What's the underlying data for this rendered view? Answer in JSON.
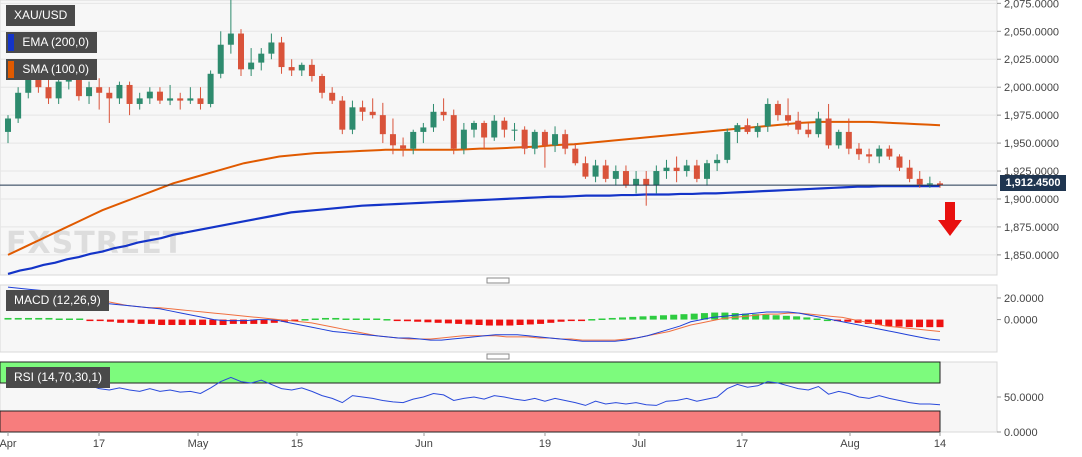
{
  "chart_data": [
    {
      "type": "candlestick",
      "panel": "price",
      "symbol": "XAU/USD",
      "last_price": "1,912.4500",
      "y_axis_ticks": [
        "2,075.0000",
        "2,050.0000",
        "2,025.0000",
        "2,000.0000",
        "1,975.0000",
        "1,950.0000",
        "1,925.0000",
        "1,900.0000",
        "1,875.0000",
        "1,850.0000"
      ],
      "ylim": [
        1832,
        2078
      ],
      "x_axis_ticks": [
        "Apr",
        "17",
        "May",
        "15",
        "Jun",
        "19",
        "Jul",
        "17",
        "Aug",
        "14"
      ],
      "indicators": [
        {
          "name": "EMA (200,0)",
          "color": "#1434c8",
          "values": [
            1833,
            1836,
            1838,
            1841,
            1843,
            1846,
            1848,
            1851,
            1853,
            1856,
            1858,
            1861,
            1863,
            1865,
            1868,
            1870,
            1872,
            1874,
            1876,
            1878,
            1880,
            1882,
            1884,
            1886,
            1888,
            1889,
            1890,
            1891,
            1892,
            1893,
            1894,
            1894.5,
            1895,
            1895.5,
            1896,
            1896.5,
            1897,
            1897.5,
            1898,
            1898.5,
            1899,
            1899.5,
            1900,
            1900.5,
            1901,
            1901.5,
            1902,
            1902,
            1902.5,
            1903,
            1903,
            1903,
            1903.5,
            1903.5,
            1904,
            1904,
            1904,
            1904.5,
            1904.5,
            1905,
            1905,
            1905.5,
            1906,
            1906.5,
            1907,
            1907.5,
            1908,
            1908.5,
            1909,
            1909.5,
            1910,
            1910.5,
            1911,
            1911,
            1911.5,
            1911.5,
            1911.5,
            1911.5,
            1911.5,
            1911.5
          ]
        },
        {
          "name": "SMA (100,0)",
          "color": "#e05a00",
          "values": [
            1850,
            1855,
            1860,
            1865,
            1870,
            1875,
            1880,
            1885,
            1890,
            1894,
            1898,
            1902,
            1906,
            1910,
            1914,
            1917,
            1920,
            1923,
            1926,
            1929,
            1932,
            1934,
            1936,
            1938,
            1939,
            1940,
            1941,
            1941.5,
            1942,
            1942.5,
            1943,
            1943.5,
            1944,
            1944,
            1944,
            1944,
            1944,
            1944,
            1944,
            1944.5,
            1945,
            1945,
            1945.5,
            1946,
            1946.5,
            1947,
            1948,
            1948.5,
            1949,
            1950,
            1951,
            1952,
            1953,
            1954,
            1955,
            1956,
            1957,
            1958,
            1959,
            1960,
            1961,
            1962,
            1963,
            1964,
            1965,
            1966,
            1967,
            1968,
            1968.5,
            1969,
            1969,
            1969,
            1969,
            1969,
            1968.5,
            1968,
            1967.5,
            1967,
            1966.5,
            1966
          ]
        }
      ],
      "candles": [
        {
          "o": 1960,
          "h": 1975,
          "l": 1950,
          "c": 1972
        },
        {
          "o": 1972,
          "h": 2000,
          "l": 1968,
          "c": 1995
        },
        {
          "o": 1995,
          "h": 2015,
          "l": 1990,
          "c": 2010
        },
        {
          "o": 2010,
          "h": 2020,
          "l": 1995,
          "c": 2000
        },
        {
          "o": 2000,
          "h": 2010,
          "l": 1985,
          "c": 1990
        },
        {
          "o": 1990,
          "h": 2008,
          "l": 1985,
          "c": 2005
        },
        {
          "o": 2005,
          "h": 2015,
          "l": 1998,
          "c": 2008
        },
        {
          "o": 2008,
          "h": 2012,
          "l": 1988,
          "c": 1992
        },
        {
          "o": 1992,
          "h": 2005,
          "l": 1985,
          "c": 2000
        },
        {
          "o": 2000,
          "h": 2008,
          "l": 1980,
          "c": 1995
        },
        {
          "o": 1995,
          "h": 2000,
          "l": 1968,
          "c": 1990
        },
        {
          "o": 1990,
          "h": 2005,
          "l": 1985,
          "c": 2002
        },
        {
          "o": 2002,
          "h": 2005,
          "l": 1975,
          "c": 1985
        },
        {
          "o": 1985,
          "h": 1995,
          "l": 1980,
          "c": 1990
        },
        {
          "o": 1990,
          "h": 2000,
          "l": 1985,
          "c": 1996
        },
        {
          "o": 1996,
          "h": 2000,
          "l": 1985,
          "c": 1988
        },
        {
          "o": 1988,
          "h": 2002,
          "l": 1984,
          "c": 1990
        },
        {
          "o": 1990,
          "h": 1995,
          "l": 1980,
          "c": 1988
        },
        {
          "o": 1988,
          "h": 2000,
          "l": 1985,
          "c": 1990
        },
        {
          "o": 1990,
          "h": 2000,
          "l": 1980,
          "c": 1985
        },
        {
          "o": 1985,
          "h": 2015,
          "l": 1982,
          "c": 2012
        },
        {
          "o": 2012,
          "h": 2050,
          "l": 2008,
          "c": 2038
        },
        {
          "o": 2038,
          "h": 2078,
          "l": 2030,
          "c": 2048
        },
        {
          "o": 2048,
          "h": 2052,
          "l": 2010,
          "c": 2016
        },
        {
          "o": 2016,
          "h": 2035,
          "l": 2010,
          "c": 2022
        },
        {
          "o": 2022,
          "h": 2035,
          "l": 2015,
          "c": 2030
        },
        {
          "o": 2030,
          "h": 2048,
          "l": 2025,
          "c": 2040
        },
        {
          "o": 2040,
          "h": 2045,
          "l": 2012,
          "c": 2018
        },
        {
          "o": 2018,
          "h": 2025,
          "l": 2010,
          "c": 2015
        },
        {
          "o": 2015,
          "h": 2022,
          "l": 2010,
          "c": 2020
        },
        {
          "o": 2020,
          "h": 2025,
          "l": 2005,
          "c": 2010
        },
        {
          "o": 2010,
          "h": 2012,
          "l": 1990,
          "c": 1995
        },
        {
          "o": 1995,
          "h": 2000,
          "l": 1985,
          "c": 1988
        },
        {
          "o": 1988,
          "h": 1992,
          "l": 1958,
          "c": 1962
        },
        {
          "o": 1962,
          "h": 1988,
          "l": 1958,
          "c": 1982
        },
        {
          "o": 1982,
          "h": 1988,
          "l": 1970,
          "c": 1978
        },
        {
          "o": 1978,
          "h": 1990,
          "l": 1972,
          "c": 1975
        },
        {
          "o": 1975,
          "h": 1986,
          "l": 1950,
          "c": 1958
        },
        {
          "o": 1958,
          "h": 1972,
          "l": 1940,
          "c": 1948
        },
        {
          "o": 1948,
          "h": 1955,
          "l": 1938,
          "c": 1945
        },
        {
          "o": 1945,
          "h": 1962,
          "l": 1940,
          "c": 1960
        },
        {
          "o": 1960,
          "h": 1968,
          "l": 1950,
          "c": 1964
        },
        {
          "o": 1964,
          "h": 1985,
          "l": 1960,
          "c": 1978
        },
        {
          "o": 1978,
          "h": 1990,
          "l": 1970,
          "c": 1975
        },
        {
          "o": 1975,
          "h": 1980,
          "l": 1940,
          "c": 1945
        },
        {
          "o": 1945,
          "h": 1968,
          "l": 1940,
          "c": 1962
        },
        {
          "o": 1962,
          "h": 1970,
          "l": 1955,
          "c": 1968
        },
        {
          "o": 1968,
          "h": 1970,
          "l": 1945,
          "c": 1955
        },
        {
          "o": 1955,
          "h": 1975,
          "l": 1952,
          "c": 1970
        },
        {
          "o": 1970,
          "h": 1973,
          "l": 1955,
          "c": 1962
        },
        {
          "o": 1962,
          "h": 1968,
          "l": 1952,
          "c": 1962
        },
        {
          "o": 1962,
          "h": 1965,
          "l": 1940,
          "c": 1945
        },
        {
          "o": 1945,
          "h": 1962,
          "l": 1940,
          "c": 1960
        },
        {
          "o": 1960,
          "h": 1962,
          "l": 1928,
          "c": 1948
        },
        {
          "o": 1948,
          "h": 1965,
          "l": 1942,
          "c": 1958
        },
        {
          "o": 1958,
          "h": 1962,
          "l": 1940,
          "c": 1945
        },
        {
          "o": 1945,
          "h": 1950,
          "l": 1930,
          "c": 1932
        },
        {
          "o": 1932,
          "h": 1938,
          "l": 1918,
          "c": 1920
        },
        {
          "o": 1920,
          "h": 1935,
          "l": 1915,
          "c": 1930
        },
        {
          "o": 1930,
          "h": 1935,
          "l": 1915,
          "c": 1918
        },
        {
          "o": 1918,
          "h": 1930,
          "l": 1912,
          "c": 1925
        },
        {
          "o": 1925,
          "h": 1930,
          "l": 1910,
          "c": 1912
        },
        {
          "o": 1912,
          "h": 1925,
          "l": 1905,
          "c": 1918
        },
        {
          "o": 1918,
          "h": 1925,
          "l": 1894,
          "c": 1912
        },
        {
          "o": 1912,
          "h": 1930,
          "l": 1905,
          "c": 1925
        },
        {
          "o": 1925,
          "h": 1935,
          "l": 1918,
          "c": 1928
        },
        {
          "o": 1928,
          "h": 1938,
          "l": 1915,
          "c": 1925
        },
        {
          "o": 1925,
          "h": 1935,
          "l": 1920,
          "c": 1930
        },
        {
          "o": 1930,
          "h": 1935,
          "l": 1915,
          "c": 1918
        },
        {
          "o": 1918,
          "h": 1935,
          "l": 1912,
          "c": 1932
        },
        {
          "o": 1932,
          "h": 1940,
          "l": 1925,
          "c": 1935
        },
        {
          "o": 1935,
          "h": 1963,
          "l": 1932,
          "c": 1960
        },
        {
          "o": 1960,
          "h": 1968,
          "l": 1950,
          "c": 1966
        },
        {
          "o": 1966,
          "h": 1972,
          "l": 1958,
          "c": 1960
        },
        {
          "o": 1960,
          "h": 1968,
          "l": 1955,
          "c": 1965
        },
        {
          "o": 1965,
          "h": 1990,
          "l": 1960,
          "c": 1985
        },
        {
          "o": 1985,
          "h": 1988,
          "l": 1970,
          "c": 1975
        },
        {
          "o": 1975,
          "h": 1990,
          "l": 1965,
          "c": 1970
        },
        {
          "o": 1970,
          "h": 1978,
          "l": 1958,
          "c": 1962
        },
        {
          "o": 1962,
          "h": 1968,
          "l": 1955,
          "c": 1958
        },
        {
          "o": 1958,
          "h": 1978,
          "l": 1955,
          "c": 1972
        },
        {
          "o": 1972,
          "h": 1985,
          "l": 1945,
          "c": 1948
        },
        {
          "o": 1948,
          "h": 1962,
          "l": 1945,
          "c": 1960
        },
        {
          "o": 1960,
          "h": 1972,
          "l": 1940,
          "c": 1945
        },
        {
          "o": 1945,
          "h": 1950,
          "l": 1935,
          "c": 1940
        },
        {
          "o": 1940,
          "h": 1945,
          "l": 1932,
          "c": 1938
        },
        {
          "o": 1938,
          "h": 1948,
          "l": 1932,
          "c": 1945
        },
        {
          "o": 1945,
          "h": 1948,
          "l": 1935,
          "c": 1938
        },
        {
          "o": 1938,
          "h": 1940,
          "l": 1925,
          "c": 1928
        },
        {
          "o": 1928,
          "h": 1935,
          "l": 1915,
          "c": 1918
        },
        {
          "o": 1918,
          "h": 1925,
          "l": 1910,
          "c": 1913
        },
        {
          "o": 1913,
          "h": 1920,
          "l": 1910,
          "c": 1914
        },
        {
          "o": 1914,
          "h": 1916,
          "l": 1910,
          "c": 1912.45
        }
      ]
    },
    {
      "type": "histogram+line",
      "panel": "macd",
      "name": "MACD (12,26,9)",
      "y_axis_ticks": [
        "20.0000",
        "0.0000"
      ],
      "ylim": [
        -30,
        32
      ],
      "macd_line": [
        30,
        29,
        28,
        27,
        25,
        23,
        21,
        19,
        17,
        15,
        14,
        13,
        12,
        11,
        10,
        8,
        6,
        4,
        2,
        0,
        -1,
        -1,
        -1,
        0,
        0,
        -1,
        -3,
        -5,
        -7,
        -9,
        -11,
        -12,
        -13,
        -14,
        -15,
        -16,
        -17,
        -17,
        -18,
        -19,
        -19,
        -18,
        -17,
        -16,
        -15,
        -14,
        -14,
        -14,
        -15,
        -16,
        -17,
        -18,
        -19,
        -20,
        -20,
        -20,
        -20,
        -19,
        -17,
        -15,
        -12,
        -9,
        -6,
        -2,
        0,
        2,
        3,
        4,
        5,
        6,
        7,
        7,
        7,
        6,
        4,
        2,
        0,
        -2,
        -4,
        -6,
        -8,
        -10,
        -12,
        -14,
        -16,
        -18,
        -19
      ],
      "signal_line": [
        25,
        25,
        25,
        25,
        24,
        23,
        22,
        21,
        19,
        17,
        15,
        13,
        12,
        11,
        11,
        10,
        9,
        8,
        7,
        6,
        5,
        4,
        3,
        2,
        1,
        0,
        -1,
        -2,
        -3,
        -5,
        -7,
        -9,
        -11,
        -13,
        -15,
        -16,
        -17,
        -18,
        -18,
        -18,
        -17,
        -16,
        -15,
        -15,
        -15,
        -15,
        -16,
        -16,
        -16,
        -17,
        -17,
        -18,
        -18,
        -19,
        -19,
        -19,
        -19,
        -18,
        -17,
        -15,
        -13,
        -11,
        -8,
        -5,
        -3,
        -1,
        1,
        2,
        3,
        4,
        5,
        5,
        6,
        6,
        5,
        4,
        3,
        2,
        0,
        -2,
        -4,
        -6,
        -7,
        -8,
        -9,
        -10,
        -11
      ],
      "histogram": [
        1.5,
        1.5,
        1.5,
        1.5,
        1.5,
        1,
        1,
        1,
        -0.5,
        -1,
        -2,
        -3,
        -3,
        -4,
        -4,
        -5,
        -5,
        -5,
        -5,
        -5,
        -5,
        -5,
        -4,
        -4,
        -4,
        -4,
        -3,
        -2,
        -1,
        0.5,
        1,
        1.5,
        1.5,
        1,
        1,
        1,
        1,
        0.5,
        -1,
        -1.5,
        -2,
        -2.5,
        -3,
        -3.5,
        -4,
        -4.5,
        -5,
        -5.5,
        -5.5,
        -5.5,
        -5,
        -4.5,
        -4,
        -3,
        -2,
        -1,
        -0.5,
        0.5,
        1,
        1.5,
        2,
        2.5,
        3,
        3.5,
        4,
        4.5,
        5,
        5.5,
        6,
        6.5,
        6.5,
        6,
        5.5,
        5,
        4.5,
        4,
        3.5,
        3,
        2,
        1,
        0,
        -1,
        -2,
        -3,
        -4,
        -5,
        -6,
        -6.5,
        -7,
        -7,
        -7,
        -7
      ]
    },
    {
      "type": "line",
      "panel": "rsi",
      "name": "RSI (14,70,30,1)",
      "y_axis_ticks": [
        "50.0000",
        "0.0000"
      ],
      "ylim": [
        0,
        100
      ],
      "overbought": 70,
      "oversold": 30,
      "values": [
        72,
        75,
        78,
        74,
        70,
        66,
        68,
        70,
        67,
        62,
        60,
        63,
        60,
        58,
        62,
        58,
        60,
        57,
        58,
        55,
        63,
        72,
        78,
        72,
        70,
        74,
        68,
        62,
        60,
        63,
        58,
        52,
        48,
        42,
        52,
        50,
        48,
        45,
        43,
        42,
        47,
        50,
        55,
        53,
        45,
        48,
        50,
        47,
        52,
        50,
        47,
        45,
        48,
        44,
        48,
        45,
        42,
        38,
        44,
        40,
        42,
        40,
        42,
        39,
        38,
        44,
        45,
        48,
        44,
        47,
        50,
        62,
        68,
        64,
        66,
        72,
        70,
        66,
        62,
        60,
        65,
        54,
        58,
        55,
        50,
        48,
        52,
        48,
        45,
        42,
        40,
        40,
        39
      ]
    }
  ],
  "watermark": "FXSTREET",
  "labels": {
    "symbol": "XAU/USD",
    "ema": "EMA (200,0)",
    "sma": "SMA (100,0)",
    "macd": "MACD (12,26,9)",
    "rsi": "RSI (14,70,30,1)"
  },
  "colors": {
    "bull": "#2e8b6e",
    "bear": "#d9533a",
    "ema": "#1434c8",
    "sma": "#e05a00",
    "macd_line": "#1e3fd8",
    "signal_line": "#f07040",
    "hist_pos": "#2ecc40",
    "hist_neg": "#ee1111",
    "rsi_line": "#2a4adb",
    "rsi_band_top": "#7dfb7d",
    "rsi_band_bottom": "#f77d7d",
    "arrow": "#e8100e"
  }
}
